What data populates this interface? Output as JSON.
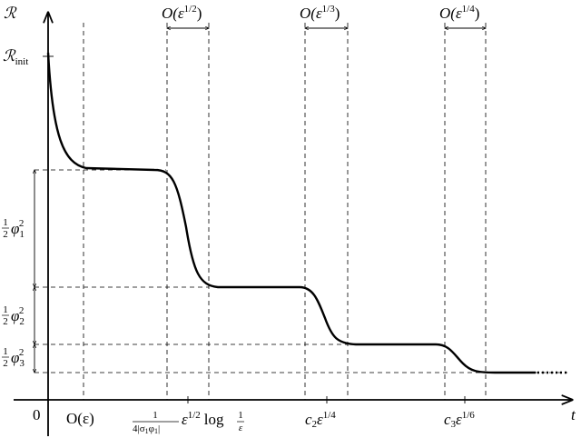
{
  "axes": {
    "y_label": "ℛ",
    "x_label": "t",
    "origin": "0",
    "y_init": {
      "base": "ℛ",
      "sub": "init"
    }
  },
  "top_brackets": [
    {
      "base": "O(ε",
      "sup": "1/2",
      "close": ")"
    },
    {
      "base": "O(ε",
      "sup": "1/3",
      "close": ")"
    },
    {
      "base": "O(ε",
      "sup": "1/4",
      "close": ")"
    }
  ],
  "x_labels": [
    {
      "text": "O(ε)"
    },
    {
      "num": "1",
      "den_a": "4|σ",
      "den_s1": "1",
      "den_b": "φ",
      "den_s2": "1",
      "den_c": "|",
      "eps": "ε",
      "sup": "1/2",
      "log": "log",
      "lnum": "1",
      "lden": "ε"
    },
    {
      "base": "c",
      "sub": "2",
      "eps": "ε",
      "sup": "1/4"
    },
    {
      "base": "c",
      "sub": "3",
      "eps": "ε",
      "sup": "1/6"
    }
  ],
  "levels": [
    {
      "num": "1",
      "den": "2",
      "base": "φ",
      "sub": "1",
      "sup": "2"
    },
    {
      "num": "1",
      "den": "2",
      "base": "φ",
      "sub": "2",
      "sup": "2"
    },
    {
      "num": "1",
      "den": "2",
      "base": "φ",
      "sub": "3",
      "sup": "2"
    }
  ]
}
